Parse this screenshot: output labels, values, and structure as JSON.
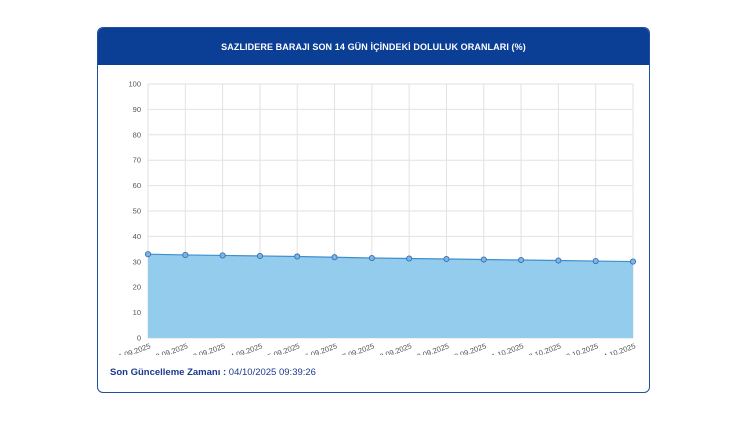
{
  "chart_data": {
    "type": "area",
    "title": "SAZLIDERE BARAJI SON 14 GÜN İÇİNDEKİ DOLULUK ORANLARI (%)",
    "categories": [
      "21.09.2025",
      "22.09.2025",
      "23.09.2025",
      "24.09.2025",
      "25.09.2025",
      "26.09.2025",
      "27.09.2025",
      "28.09.2025",
      "29.09.2025",
      "30.09.2025",
      "01.10.2025",
      "02.10.2025",
      "03.10.2025",
      "04.10.2025"
    ],
    "series": [
      {
        "values": [
          33.0,
          32.7,
          32.5,
          32.3,
          32.1,
          31.8,
          31.5,
          31.3,
          31.1,
          30.9,
          30.7,
          30.5,
          30.3,
          30.1
        ]
      }
    ],
    "y_ticks": [
      0,
      10,
      20,
      30,
      40,
      50,
      60,
      70,
      80,
      90,
      100
    ],
    "ylim": [
      0,
      100
    ],
    "xlabel": "",
    "ylabel": "",
    "grid": true,
    "colors": {
      "area_fill": "#8ec9ec",
      "line": "#3f8fd0",
      "marker_fill": "#7cb5e6",
      "marker_stroke": "#3a6fb0",
      "grid": "#e2e2e2",
      "header_bg": "#0b3f96"
    }
  },
  "footer": {
    "label": "Son Güncelleme Zamanı",
    "separator": " : ",
    "value": "04/10/2025 09:39:26"
  }
}
